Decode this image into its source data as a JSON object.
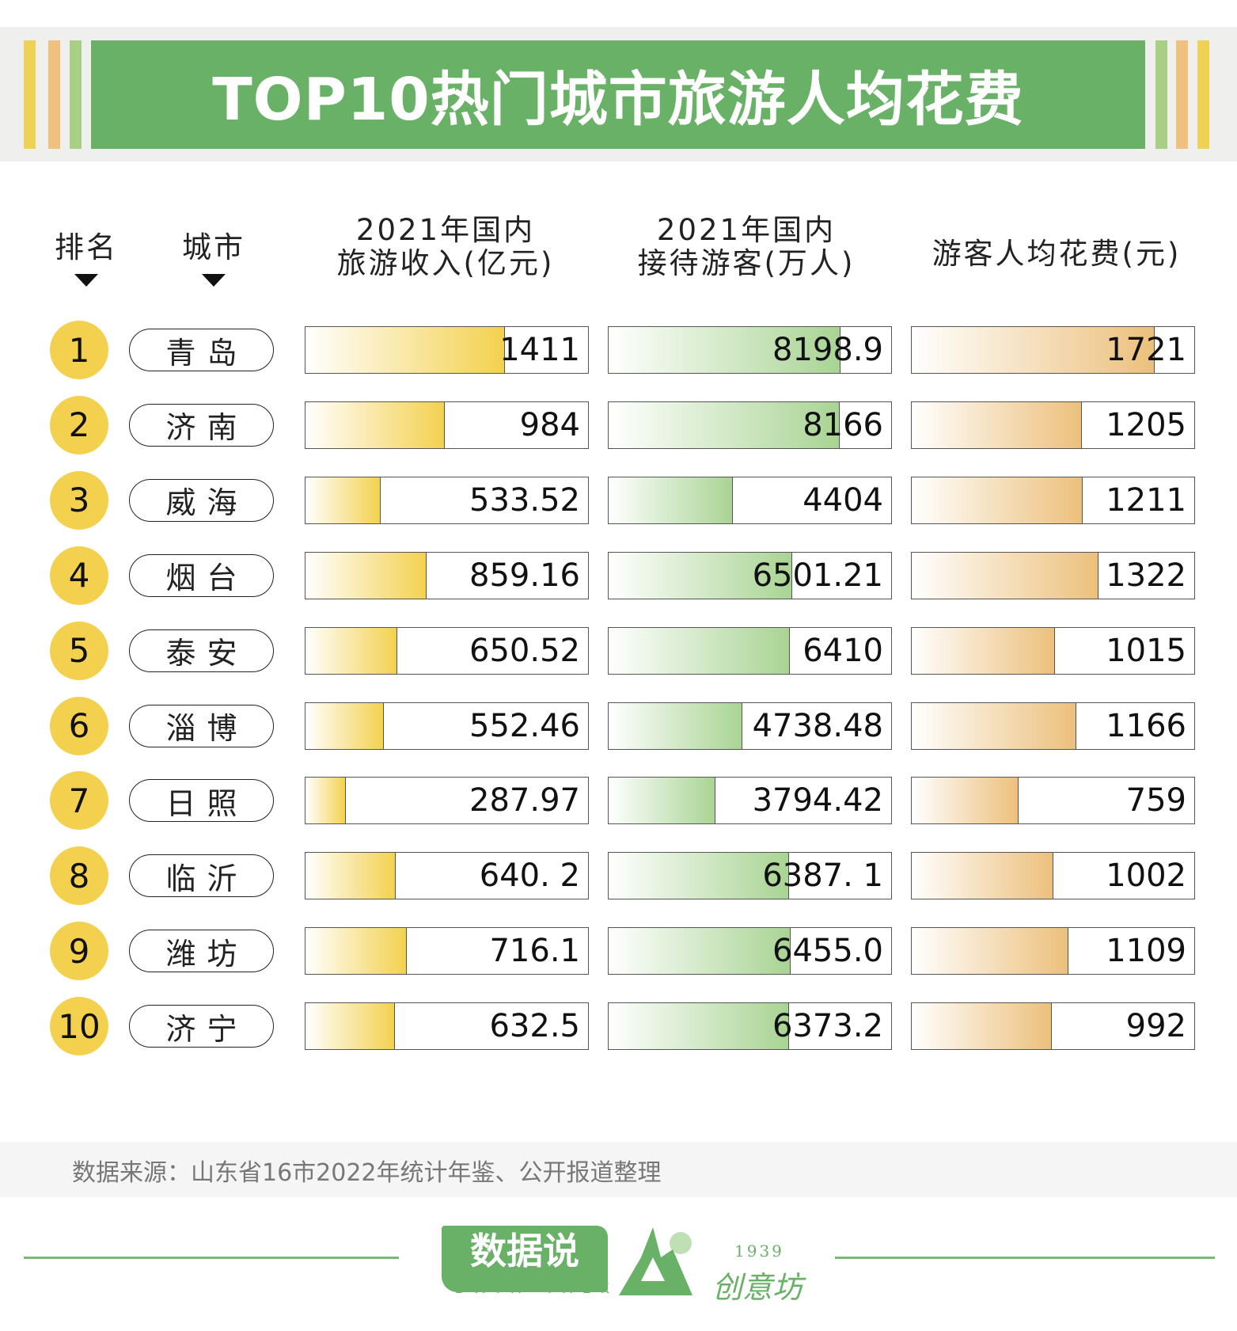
{
  "title": "TOP10热门城市旅游人均花费",
  "colors": {
    "title_bg": "#68b167",
    "rank_circle": "#f3d14f",
    "revenue_bar": "#f3d14f",
    "visitors_bar": "#a9d494",
    "spend_bar": "#ecc07c",
    "stripe_yellow": "#efd155",
    "stripe_orange": "#efc07e",
    "stripe_green": "#a9cf84"
  },
  "headers": {
    "rank": "排名",
    "city": "城市",
    "revenue": [
      "2021年国内",
      "旅游收入(亿元)"
    ],
    "visitors": [
      "2021年国内",
      "接待游客(万人)"
    ],
    "spend": "游客人均花费(元)"
  },
  "chart_data": {
    "type": "table",
    "title": "TOP10热门城市旅游人均花费",
    "columns": [
      "排名",
      "城市",
      "2021年国内旅游收入(亿元)",
      "2021年国内接待游客(万人)",
      "游客人均花费(元)"
    ],
    "rows": [
      {
        "rank": "1",
        "city": "青岛",
        "revenue": "1411",
        "visitors": "8198.9",
        "spend": "1721"
      },
      {
        "rank": "2",
        "city": "济南",
        "revenue": "984",
        "visitors": "8166",
        "spend": "1205"
      },
      {
        "rank": "3",
        "city": "威海",
        "revenue": "533.52",
        "visitors": "4404",
        "spend": "1211"
      },
      {
        "rank": "4",
        "city": "烟台",
        "revenue": "859.16",
        "visitors": "6501.21",
        "spend": "1322"
      },
      {
        "rank": "5",
        "city": "泰安",
        "revenue": "650.52",
        "visitors": "6410",
        "spend": "1015"
      },
      {
        "rank": "6",
        "city": "淄博",
        "revenue": "552.46",
        "visitors": "4738.48",
        "spend": "1166"
      },
      {
        "rank": "7",
        "city": "日照",
        "revenue": "287.97",
        "visitors": "3794.42",
        "spend": "759"
      },
      {
        "rank": "8",
        "city": "临沂",
        "revenue": "640. 2",
        "visitors": "6387. 1",
        "spend": "1002"
      },
      {
        "rank": "9",
        "city": "潍坊",
        "revenue": "716.1",
        "visitors": "6455.0",
        "spend": "1109"
      },
      {
        "rank": "10",
        "city": "济宁",
        "revenue": "632.5",
        "visitors": "6373.2",
        "spend": "992"
      }
    ]
  },
  "footer": {
    "source": "数据来源：山东省16市2022年统计年鉴、公开报道整理"
  },
  "logos": {
    "brand1": "数据说",
    "brand1_sub": "DATA TALK",
    "brand2": "创意坊",
    "brand2_year": "1939"
  }
}
